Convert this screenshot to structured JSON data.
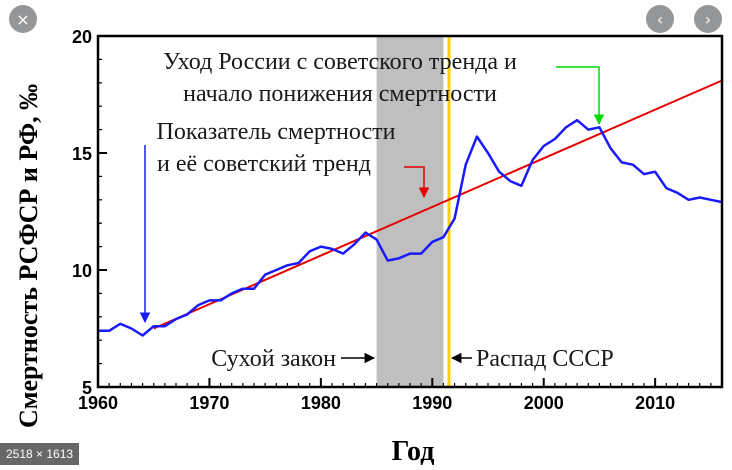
{
  "viewer": {
    "close_icon": "×",
    "prev_icon": "‹",
    "next_icon": "›",
    "dimensions": "2518 × 1613"
  },
  "colors": {
    "series": "#1a1aff",
    "trend": "#e60000",
    "shade": "#bfbfbf",
    "collapse_line": "#ffd000",
    "arrow_green": "#00dd00"
  },
  "chart_data": {
    "type": "line",
    "xlabel": "Год",
    "ylabel": "Смертность РСФСР и РФ, ‰",
    "xlim": [
      1960,
      2016
    ],
    "ylim": [
      5,
      20
    ],
    "xticks": [
      1960,
      1970,
      1980,
      1990,
      2000,
      2010
    ],
    "yticks": [
      5,
      10,
      15,
      20
    ],
    "series": [
      {
        "x": [
          1960,
          1961,
          1962,
          1963,
          1964,
          1965,
          1966,
          1967,
          1968,
          1969,
          1970,
          1971,
          1972,
          1973,
          1974,
          1975,
          1976,
          1977,
          1978,
          1979,
          1980,
          1981,
          1982,
          1983,
          1984,
          1985,
          1986,
          1987,
          1988,
          1989,
          1990,
          1991,
          1992,
          1993,
          1994,
          1995,
          1996,
          1997,
          1998,
          1999,
          2000,
          2001,
          2002,
          2003,
          2004,
          2005,
          2006,
          2007,
          2008,
          2009,
          2010,
          2011,
          2012,
          2013,
          2014,
          2015,
          2016
        ],
        "values": [
          7.4,
          7.4,
          7.7,
          7.5,
          7.2,
          7.6,
          7.6,
          7.9,
          8.1,
          8.5,
          8.7,
          8.7,
          9.0,
          9.2,
          9.2,
          9.8,
          10.0,
          10.2,
          10.3,
          10.8,
          11.0,
          10.9,
          10.7,
          11.1,
          11.6,
          11.3,
          10.4,
          10.5,
          10.7,
          10.7,
          11.2,
          11.4,
          12.2,
          14.5,
          15.7,
          15.0,
          14.2,
          13.8,
          13.6,
          14.7,
          15.3,
          15.6,
          16.1,
          16.4,
          16.0,
          16.1,
          15.2,
          14.6,
          14.5,
          14.1,
          14.2,
          13.5,
          13.3,
          13.0,
          13.1,
          13.0,
          12.9
        ]
      },
      {
        "x": [
          1965,
          2016
        ],
        "values": [
          7.5,
          18.1
        ]
      }
    ],
    "shaded_region": [
      1985,
      1991
    ],
    "vertical_line": 1991.5,
    "annotations": [
      {
        "lines": [
          "Уход России с советского тренда и",
          "начало понижения смертности"
        ],
        "target": [
          2005,
          16.2
        ]
      },
      {
        "lines": [
          "Показатель смертности",
          "и её советский тренд"
        ],
        "targets": [
          [
            1964,
            7.6
          ],
          [
            1989,
            13.1
          ]
        ]
      },
      {
        "lines": [
          "Сухой закон"
        ]
      },
      {
        "lines": [
          "Распад СССР"
        ]
      }
    ]
  }
}
